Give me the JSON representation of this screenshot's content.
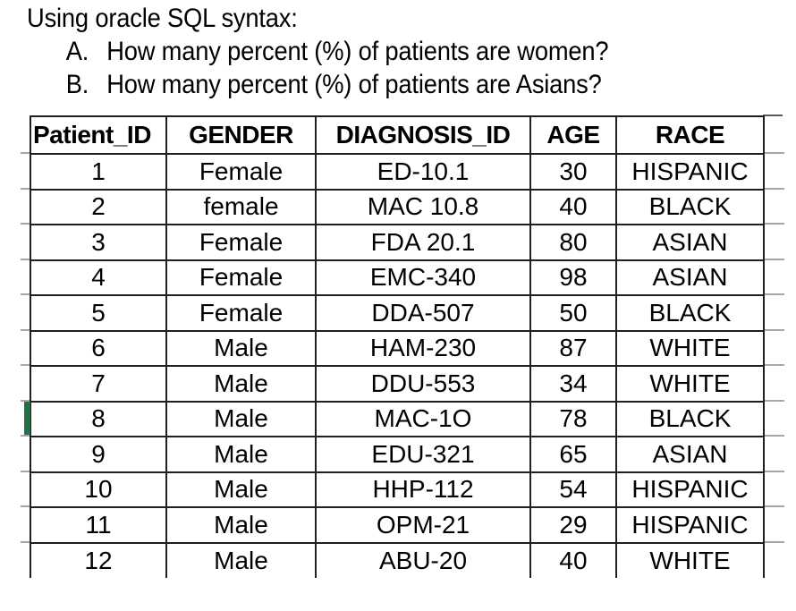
{
  "question": {
    "title": "Using oracle SQL syntax:",
    "items": [
      {
        "label": "A.",
        "text": "How many percent (%) of patients are women?"
      },
      {
        "label": "B.",
        "text": "How many percent (%) of patients are Asians?"
      }
    ]
  },
  "table": {
    "columns": [
      "Patient_ID",
      "GENDER",
      "DIAGNOSIS_ID",
      "AGE",
      "RACE"
    ],
    "rows": [
      [
        "1",
        "Female",
        "ED-10.1",
        "30",
        "HISPANIC"
      ],
      [
        "2",
        "female",
        "MAC 10.8",
        "40",
        "BLACK"
      ],
      [
        "3",
        "Female",
        "FDA 20.1",
        "80",
        "ASIAN"
      ],
      [
        "4",
        "Female",
        "EMC-340",
        "98",
        "ASIAN"
      ],
      [
        "5",
        "Female",
        "DDA-507",
        "50",
        "BLACK"
      ],
      [
        "6",
        "Male",
        "HAM-230",
        "87",
        "WHITE"
      ],
      [
        "7",
        "Male",
        "DDU-553",
        "34",
        "WHITE"
      ],
      [
        "8",
        "Male",
        "MAC-1O",
        "78",
        "BLACK"
      ],
      [
        "9",
        "Male",
        "EDU-321",
        "65",
        "ASIAN"
      ],
      [
        "10",
        "Male",
        "HHP-112",
        "54",
        "HISPANIC"
      ],
      [
        "11",
        "Male",
        "OPM-21",
        "29",
        "HISPANIC"
      ],
      [
        "12",
        "Male",
        "ABU-20",
        "40",
        "WHITE"
      ]
    ],
    "selected_row_index": 7
  },
  "colors": {
    "selection_green": "#217346",
    "table_border": "#1f1f1f",
    "gridline_stub": "#a6a6a6"
  }
}
